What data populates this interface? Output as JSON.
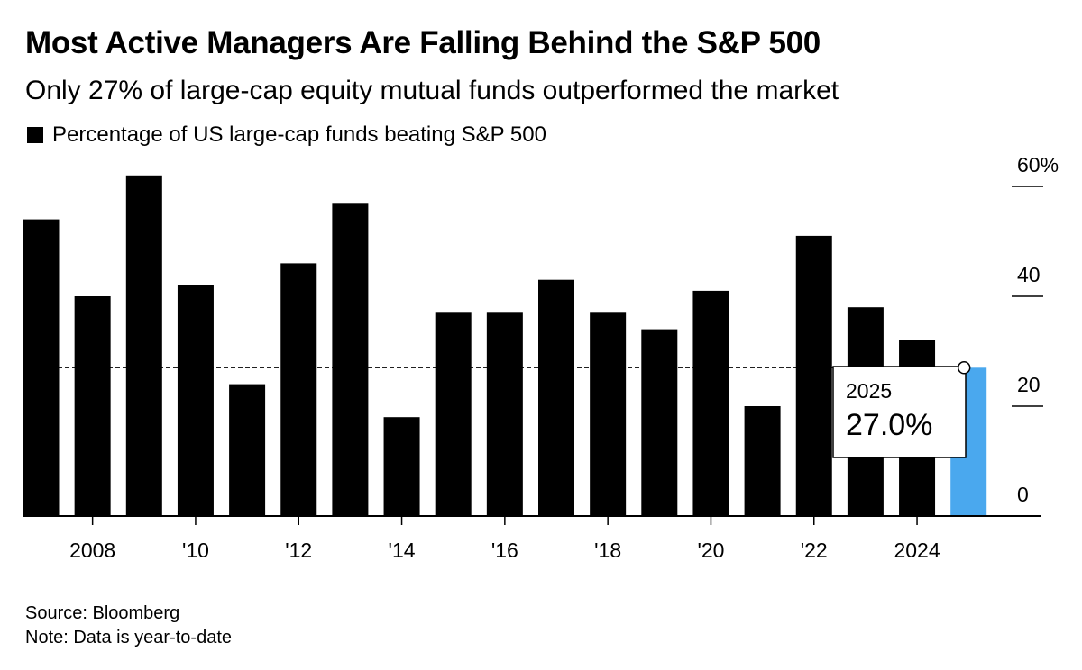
{
  "title": "Most Active Managers Are Falling Behind the S&P 500",
  "subtitle": "Only 27% of large-cap equity mutual funds outperformed the market",
  "legend": {
    "label": "Percentage of US large-cap funds beating S&P 500",
    "color": "#000000"
  },
  "source": "Source: Bloomberg",
  "note": "Note: Data is year-to-date",
  "colors": {
    "bar": "#000000",
    "highlight": "#4aa8ee",
    "axis": "#000000",
    "reference_line": "#000000"
  },
  "chart_data": {
    "type": "bar",
    "title": "Most Active Managers Are Falling Behind the S&P 500",
    "xlabel": "",
    "ylabel": "Percentage of US large-cap funds beating S&P 500",
    "categories": [
      "2007",
      "2008",
      "2009",
      "2010",
      "2011",
      "2012",
      "2013",
      "2014",
      "2015",
      "2016",
      "2017",
      "2018",
      "2019",
      "2020",
      "2021",
      "2022",
      "2023",
      "2024",
      "2025"
    ],
    "values": [
      54,
      40,
      62,
      42,
      24,
      46,
      57,
      18,
      37,
      37,
      43,
      37,
      34,
      41,
      20,
      51,
      38,
      32,
      27
    ],
    "ylim": [
      0,
      60
    ],
    "y_ticks": [
      {
        "value": 0,
        "label": "0"
      },
      {
        "value": 20,
        "label": "20"
      },
      {
        "value": 40,
        "label": "40"
      },
      {
        "value": 60,
        "label": "60%"
      }
    ],
    "x_ticks": [
      {
        "category": "2008",
        "label": "2008"
      },
      {
        "category": "2010",
        "label": "'10"
      },
      {
        "category": "2012",
        "label": "'12"
      },
      {
        "category": "2014",
        "label": "'14"
      },
      {
        "category": "2016",
        "label": "'16"
      },
      {
        "category": "2018",
        "label": "'18"
      },
      {
        "category": "2020",
        "label": "'20"
      },
      {
        "category": "2022",
        "label": "'22"
      },
      {
        "category": "2024",
        "label": "2024"
      }
    ],
    "highlight": {
      "category": "2025",
      "value": 27.0,
      "label_year": "2025",
      "label_value": "27.0%"
    },
    "reference_line": {
      "value": 27.0,
      "style": "dashed"
    },
    "grid": false,
    "legend_position": "top-left"
  }
}
